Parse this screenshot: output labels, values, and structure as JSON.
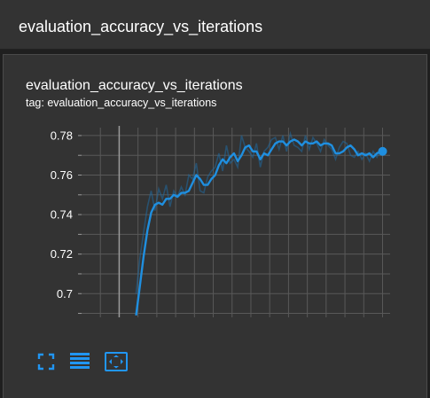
{
  "header": {
    "title": "evaluation_accuracy_vs_iterations"
  },
  "card": {
    "title": "evaluation_accuracy_vs_iterations",
    "tag": "tag: evaluation_accuracy_vs_iterations"
  },
  "toolbar": {
    "buttons": [
      {
        "icon": "fullscreen-icon"
      },
      {
        "icon": "list-lines-icon"
      },
      {
        "icon": "fit-domain-icon"
      }
    ]
  },
  "colors": {
    "line": "#1f8fe0",
    "raw_line": "#1f6aa0",
    "background": "#333333",
    "grid": "#595959",
    "text": "#ffffff"
  },
  "chart_data": {
    "type": "line",
    "title": "",
    "xlabel": "",
    "ylabel": "",
    "xlim": [
      -100,
      720
    ],
    "ylim": [
      0.688,
      0.784
    ],
    "x_ticks": [
      0,
      100,
      200,
      300,
      400,
      500,
      600,
      700
    ],
    "y_ticks": [
      0.7,
      0.72,
      0.74,
      0.76,
      0.78
    ],
    "y_tick_labels": [
      "0.7",
      "0.72",
      "0.74",
      "0.76",
      "0.78"
    ],
    "grid": true,
    "series": [
      {
        "kind": "smoothed",
        "x": [
          45,
          55,
          65,
          75,
          85,
          95,
          105,
          115,
          125,
          135,
          145,
          155,
          165,
          175,
          185,
          195,
          205,
          215,
          225,
          235,
          245,
          255,
          265,
          275,
          285,
          295,
          305,
          315,
          325,
          335,
          345,
          355,
          365,
          375,
          385,
          395,
          405,
          415,
          425,
          435,
          445,
          455,
          465,
          475,
          485,
          495,
          505,
          515,
          525,
          535,
          545,
          555,
          565,
          575,
          585,
          595,
          605,
          615,
          625,
          635,
          645,
          655,
          665,
          675,
          685,
          695,
          700
        ],
        "y": [
          0.689,
          0.704,
          0.719,
          0.732,
          0.741,
          0.745,
          0.746,
          0.745,
          0.748,
          0.748,
          0.75,
          0.749,
          0.751,
          0.751,
          0.752,
          0.756,
          0.76,
          0.758,
          0.755,
          0.755,
          0.758,
          0.76,
          0.765,
          0.768,
          0.766,
          0.769,
          0.771,
          0.767,
          0.77,
          0.774,
          0.775,
          0.772,
          0.772,
          0.768,
          0.771,
          0.77,
          0.773,
          0.776,
          0.777,
          0.777,
          0.775,
          0.777,
          0.778,
          0.777,
          0.775,
          0.777,
          0.776,
          0.776,
          0.777,
          0.775,
          0.776,
          0.776,
          0.775,
          0.771,
          0.771,
          0.772,
          0.774,
          0.775,
          0.773,
          0.77,
          0.771,
          0.77,
          0.771,
          0.769,
          0.771,
          0.772,
          0.772
        ]
      },
      {
        "kind": "raw",
        "x": [
          45,
          55,
          65,
          75,
          85,
          95,
          105,
          115,
          125,
          135,
          145,
          155,
          165,
          175,
          185,
          195,
          205,
          215,
          225,
          235,
          245,
          255,
          265,
          275,
          285,
          295,
          305,
          315,
          325,
          335,
          345,
          355,
          365,
          375,
          385,
          395,
          405,
          415,
          425,
          435,
          445,
          455,
          465,
          475,
          485,
          495,
          505,
          515,
          525,
          535,
          545,
          555,
          565,
          575,
          585,
          595,
          605,
          615,
          625,
          635,
          645,
          655,
          665,
          675,
          685,
          695,
          700
        ],
        "y": [
          0.7,
          0.718,
          0.731,
          0.744,
          0.752,
          0.742,
          0.753,
          0.748,
          0.755,
          0.744,
          0.752,
          0.749,
          0.754,
          0.75,
          0.76,
          0.758,
          0.766,
          0.752,
          0.751,
          0.759,
          0.762,
          0.764,
          0.771,
          0.762,
          0.775,
          0.766,
          0.768,
          0.764,
          0.78,
          0.774,
          0.772,
          0.769,
          0.776,
          0.764,
          0.772,
          0.774,
          0.778,
          0.779,
          0.773,
          0.78,
          0.772,
          0.781,
          0.775,
          0.774,
          0.772,
          0.78,
          0.773,
          0.779,
          0.776,
          0.772,
          0.778,
          0.775,
          0.773,
          0.768,
          0.774,
          0.777,
          0.776,
          0.77,
          0.769,
          0.772,
          0.768,
          0.771,
          0.767,
          0.772,
          0.769,
          0.773,
          0.772
        ]
      }
    ]
  }
}
